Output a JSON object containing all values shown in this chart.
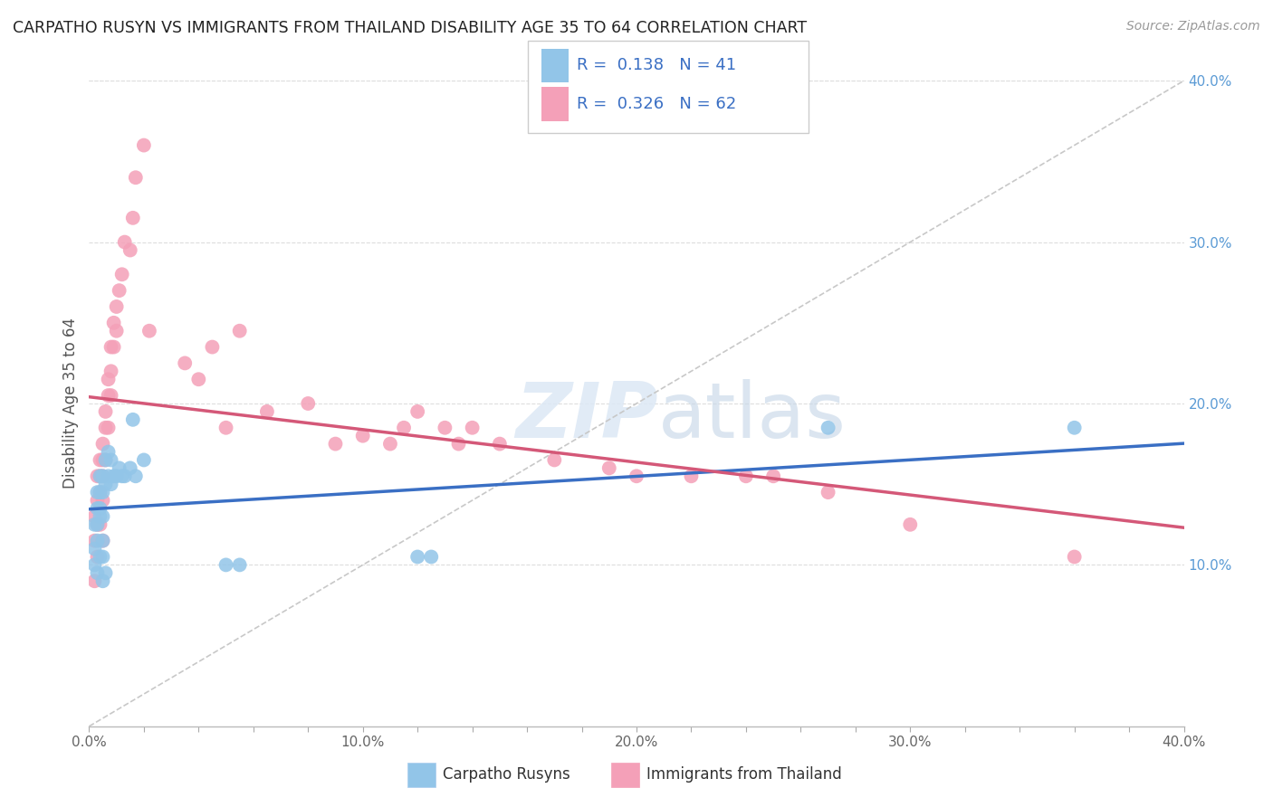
{
  "title": "CARPATHO RUSYN VS IMMIGRANTS FROM THAILAND DISABILITY AGE 35 TO 64 CORRELATION CHART",
  "source": "Source: ZipAtlas.com",
  "ylabel": "Disability Age 35 to 64",
  "xlim": [
    0.0,
    0.4
  ],
  "ylim": [
    0.0,
    0.4
  ],
  "xtick_labels": [
    "0.0%",
    "",
    "",
    "",
    "",
    "10.0%",
    "",
    "",
    "",
    "",
    "20.0%",
    "",
    "",
    "",
    "",
    "30.0%",
    "",
    "",
    "",
    "",
    "40.0%"
  ],
  "xtick_vals": [
    0.0,
    0.02,
    0.04,
    0.06,
    0.08,
    0.1,
    0.12,
    0.14,
    0.16,
    0.18,
    0.2,
    0.22,
    0.24,
    0.26,
    0.28,
    0.3,
    0.32,
    0.34,
    0.36,
    0.38,
    0.4
  ],
  "ytick_vals": [
    0.1,
    0.2,
    0.3,
    0.4
  ],
  "ytick_labels": [
    "10.0%",
    "20.0%",
    "30.0%",
    "40.0%"
  ],
  "blue_R": 0.138,
  "blue_N": 41,
  "pink_R": 0.326,
  "pink_N": 62,
  "blue_color": "#92C5E8",
  "pink_color": "#F4A0B8",
  "blue_line_color": "#3A6FC4",
  "pink_line_color": "#D45878",
  "dashed_line_color": "#C8C8C8",
  "legend_label_blue": "Carpatho Rusyns",
  "legend_label_pink": "Immigrants from Thailand",
  "blue_x": [
    0.002,
    0.002,
    0.002,
    0.003,
    0.003,
    0.003,
    0.003,
    0.003,
    0.004,
    0.004,
    0.004,
    0.004,
    0.004,
    0.005,
    0.005,
    0.005,
    0.005,
    0.005,
    0.005,
    0.006,
    0.006,
    0.006,
    0.007,
    0.007,
    0.008,
    0.008,
    0.009,
    0.01,
    0.011,
    0.012,
    0.013,
    0.015,
    0.016,
    0.017,
    0.02,
    0.05,
    0.055,
    0.12,
    0.125,
    0.27,
    0.36
  ],
  "blue_y": [
    0.125,
    0.11,
    0.1,
    0.145,
    0.135,
    0.125,
    0.115,
    0.095,
    0.155,
    0.145,
    0.135,
    0.13,
    0.105,
    0.155,
    0.145,
    0.13,
    0.115,
    0.105,
    0.09,
    0.165,
    0.15,
    0.095,
    0.17,
    0.155,
    0.165,
    0.15,
    0.155,
    0.155,
    0.16,
    0.155,
    0.155,
    0.16,
    0.19,
    0.155,
    0.165,
    0.1,
    0.1,
    0.105,
    0.105,
    0.185,
    0.185
  ],
  "pink_x": [
    0.002,
    0.002,
    0.002,
    0.003,
    0.003,
    0.003,
    0.003,
    0.004,
    0.004,
    0.004,
    0.004,
    0.005,
    0.005,
    0.005,
    0.005,
    0.005,
    0.006,
    0.006,
    0.006,
    0.007,
    0.007,
    0.007,
    0.008,
    0.008,
    0.008,
    0.009,
    0.009,
    0.01,
    0.01,
    0.011,
    0.012,
    0.013,
    0.015,
    0.016,
    0.017,
    0.02,
    0.022,
    0.035,
    0.04,
    0.045,
    0.05,
    0.055,
    0.065,
    0.08,
    0.09,
    0.1,
    0.11,
    0.115,
    0.12,
    0.13,
    0.135,
    0.14,
    0.15,
    0.17,
    0.19,
    0.2,
    0.22,
    0.24,
    0.25,
    0.27,
    0.3,
    0.36
  ],
  "pink_y": [
    0.13,
    0.115,
    0.09,
    0.155,
    0.14,
    0.125,
    0.105,
    0.165,
    0.155,
    0.145,
    0.125,
    0.175,
    0.165,
    0.155,
    0.14,
    0.115,
    0.195,
    0.185,
    0.165,
    0.215,
    0.205,
    0.185,
    0.235,
    0.22,
    0.205,
    0.25,
    0.235,
    0.26,
    0.245,
    0.27,
    0.28,
    0.3,
    0.295,
    0.315,
    0.34,
    0.36,
    0.245,
    0.225,
    0.215,
    0.235,
    0.185,
    0.245,
    0.195,
    0.2,
    0.175,
    0.18,
    0.175,
    0.185,
    0.195,
    0.185,
    0.175,
    0.185,
    0.175,
    0.165,
    0.16,
    0.155,
    0.155,
    0.155,
    0.155,
    0.145,
    0.125,
    0.105
  ]
}
